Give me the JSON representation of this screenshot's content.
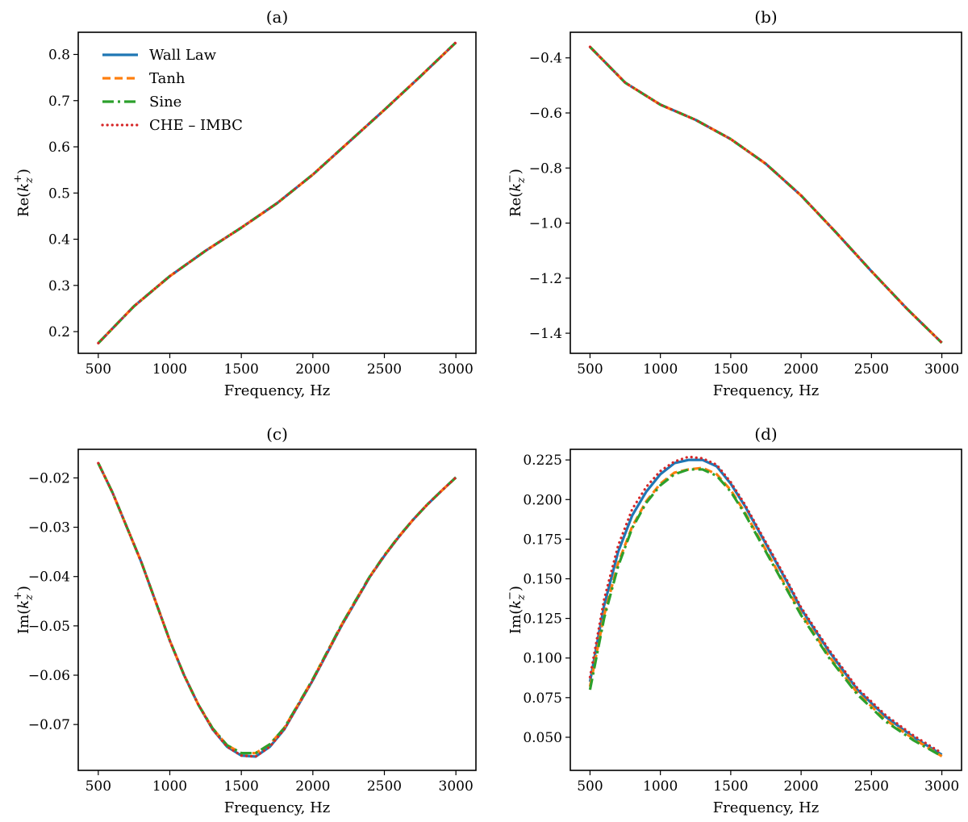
{
  "colors": {
    "wall_law": "#1f77b4",
    "tanh": "#ff7f0e",
    "sine": "#2ca02c",
    "che_imbc": "#d62728"
  },
  "chart_data": [
    {
      "type": "line",
      "panel": "(a)",
      "xlabel": "Frequency, Hz",
      "ylabel_main": "Re(",
      "ylabel_var": "k",
      "ylabel_sub": "z",
      "ylabel_sup": "+",
      "ylabel_close": ")",
      "xlim": [
        360,
        3140
      ],
      "ylim": [
        0.153,
        0.848
      ],
      "xticks": [
        500,
        1000,
        1500,
        2000,
        2500,
        3000
      ],
      "xtick_labels": [
        "500",
        "1000",
        "1500",
        "2000",
        "2500",
        "3000"
      ],
      "yticks": [
        0.2,
        0.3,
        0.4,
        0.5,
        0.6,
        0.7,
        0.8
      ],
      "ytick_labels": [
        "0.2",
        "0.3",
        "0.4",
        "0.5",
        "0.6",
        "0.7",
        "0.8"
      ],
      "legend": {
        "position": "upper-left",
        "entries": [
          "Wall Law",
          "Tanh",
          "Sine",
          "CHE – IMBC"
        ]
      },
      "series": [
        {
          "name": "Wall Law",
          "style": "solid",
          "x": [
            500,
            750,
            1000,
            1250,
            1500,
            1750,
            2000,
            2250,
            2500,
            2750,
            3000
          ],
          "y": [
            0.175,
            0.255,
            0.32,
            0.375,
            0.425,
            0.478,
            0.54,
            0.61,
            0.68,
            0.752,
            0.826
          ]
        },
        {
          "name": "Tanh",
          "style": "dashed",
          "x": [
            500,
            750,
            1000,
            1250,
            1500,
            1750,
            2000,
            2250,
            2500,
            2750,
            3000
          ],
          "y": [
            0.175,
            0.255,
            0.32,
            0.375,
            0.425,
            0.478,
            0.54,
            0.61,
            0.68,
            0.752,
            0.826
          ]
        },
        {
          "name": "Sine",
          "style": "dashdot",
          "x": [
            500,
            750,
            1000,
            1250,
            1500,
            1750,
            2000,
            2250,
            2500,
            2750,
            3000
          ],
          "y": [
            0.175,
            0.255,
            0.32,
            0.375,
            0.425,
            0.478,
            0.54,
            0.61,
            0.68,
            0.752,
            0.826
          ]
        },
        {
          "name": "CHE – IMBC",
          "style": "dotted",
          "x": [
            500,
            750,
            1000,
            1250,
            1500,
            1750,
            2000,
            2250,
            2500,
            2750,
            3000
          ],
          "y": [
            0.175,
            0.255,
            0.32,
            0.375,
            0.425,
            0.478,
            0.54,
            0.61,
            0.68,
            0.752,
            0.826
          ]
        }
      ]
    },
    {
      "type": "line",
      "panel": "(b)",
      "xlabel": "Frequency, Hz",
      "ylabel_main": "Re(",
      "ylabel_var": "k",
      "ylabel_sub": "z",
      "ylabel_sup": "−",
      "ylabel_close": ")",
      "xlim": [
        360,
        3140
      ],
      "ylim": [
        -1.473,
        -0.307
      ],
      "xticks": [
        500,
        1000,
        1500,
        2000,
        2500,
        3000
      ],
      "xtick_labels": [
        "500",
        "1000",
        "1500",
        "2000",
        "2500",
        "3000"
      ],
      "yticks": [
        -1.4,
        -1.2,
        -1.0,
        -0.8,
        -0.6,
        -0.4
      ],
      "ytick_labels": [
        "−1.4",
        "−1.2",
        "−1.0",
        "−0.8",
        "−0.6",
        "−0.4"
      ],
      "series": [
        {
          "name": "Wall Law",
          "style": "solid",
          "x": [
            500,
            750,
            1000,
            1250,
            1500,
            1750,
            2000,
            2250,
            2500,
            2750,
            3000
          ],
          "y": [
            -0.36,
            -0.49,
            -0.57,
            -0.625,
            -0.695,
            -0.785,
            -0.9,
            -1.035,
            -1.175,
            -1.31,
            -1.435
          ]
        },
        {
          "name": "Tanh",
          "style": "dashed",
          "x": [
            500,
            750,
            1000,
            1250,
            1500,
            1750,
            2000,
            2250,
            2500,
            2750,
            3000
          ],
          "y": [
            -0.36,
            -0.49,
            -0.57,
            -0.625,
            -0.695,
            -0.785,
            -0.9,
            -1.035,
            -1.175,
            -1.31,
            -1.435
          ]
        },
        {
          "name": "Sine",
          "style": "dashdot",
          "x": [
            500,
            750,
            1000,
            1250,
            1500,
            1750,
            2000,
            2250,
            2500,
            2750,
            3000
          ],
          "y": [
            -0.36,
            -0.49,
            -0.57,
            -0.625,
            -0.695,
            -0.785,
            -0.9,
            -1.035,
            -1.175,
            -1.31,
            -1.435
          ]
        },
        {
          "name": "CHE – IMBC",
          "style": "dotted",
          "x": [
            500,
            750,
            1000,
            1250,
            1500,
            1750,
            2000,
            2250,
            2500,
            2750,
            3000
          ],
          "y": [
            -0.36,
            -0.49,
            -0.57,
            -0.625,
            -0.695,
            -0.785,
            -0.9,
            -1.035,
            -1.175,
            -1.31,
            -1.435
          ]
        }
      ]
    },
    {
      "type": "line",
      "panel": "(c)",
      "xlabel": "Frequency, Hz",
      "ylabel_main": "Im(",
      "ylabel_var": "k",
      "ylabel_sub": "z",
      "ylabel_sup": "+",
      "ylabel_close": ")",
      "xlim": [
        360,
        3140
      ],
      "ylim": [
        -0.0793,
        -0.0142
      ],
      "xticks": [
        500,
        1000,
        1500,
        2000,
        2500,
        3000
      ],
      "xtick_labels": [
        "500",
        "1000",
        "1500",
        "2000",
        "2500",
        "3000"
      ],
      "yticks": [
        -0.07,
        -0.06,
        -0.05,
        -0.04,
        -0.03,
        -0.02
      ],
      "ytick_labels": [
        "−0.07",
        "−0.06",
        "−0.05",
        "−0.04",
        "−0.03",
        "−0.02"
      ],
      "series": [
        {
          "name": "Wall Law",
          "style": "solid",
          "x": [
            500,
            600,
            700,
            800,
            900,
            1000,
            1100,
            1200,
            1300,
            1400,
            1500,
            1600,
            1700,
            1800,
            1900,
            2000,
            2100,
            2200,
            2300,
            2400,
            2500,
            2600,
            2700,
            2800,
            2900,
            3000
          ],
          "y": [
            -0.017,
            -0.023,
            -0.03,
            -0.037,
            -0.045,
            -0.053,
            -0.06,
            -0.066,
            -0.071,
            -0.0745,
            -0.0763,
            -0.0765,
            -0.0745,
            -0.071,
            -0.066,
            -0.061,
            -0.0555,
            -0.05,
            -0.045,
            -0.04,
            -0.0358,
            -0.032,
            -0.0285,
            -0.0254,
            -0.0226,
            -0.0199
          ]
        },
        {
          "name": "Tanh",
          "style": "dashed",
          "x": [
            500,
            600,
            700,
            800,
            900,
            1000,
            1100,
            1200,
            1300,
            1400,
            1500,
            1600,
            1700,
            1800,
            1900,
            2000,
            2100,
            2200,
            2300,
            2400,
            2500,
            2600,
            2700,
            2800,
            2900,
            3000
          ],
          "y": [
            -0.017,
            -0.023,
            -0.03,
            -0.037,
            -0.045,
            -0.053,
            -0.06,
            -0.066,
            -0.0708,
            -0.0742,
            -0.0758,
            -0.0758,
            -0.074,
            -0.0707,
            -0.0658,
            -0.0608,
            -0.0553,
            -0.0498,
            -0.0448,
            -0.0399,
            -0.0357,
            -0.0319,
            -0.0285,
            -0.0254,
            -0.0226,
            -0.0199
          ]
        },
        {
          "name": "Sine",
          "style": "dashdot",
          "x": [
            500,
            600,
            700,
            800,
            900,
            1000,
            1100,
            1200,
            1300,
            1400,
            1500,
            1600,
            1700,
            1800,
            1900,
            2000,
            2100,
            2200,
            2300,
            2400,
            2500,
            2600,
            2700,
            2800,
            2900,
            3000
          ],
          "y": [
            -0.017,
            -0.023,
            -0.03,
            -0.037,
            -0.045,
            -0.053,
            -0.06,
            -0.066,
            -0.0708,
            -0.0742,
            -0.0758,
            -0.0758,
            -0.074,
            -0.0707,
            -0.0658,
            -0.0608,
            -0.0553,
            -0.0498,
            -0.0448,
            -0.0399,
            -0.0357,
            -0.0319,
            -0.0285,
            -0.0254,
            -0.0226,
            -0.0199
          ]
        },
        {
          "name": "CHE – IMBC",
          "style": "dotted",
          "x": [
            500,
            600,
            700,
            800,
            900,
            1000,
            1100,
            1200,
            1300,
            1400,
            1500,
            1600,
            1700,
            1800,
            1900,
            2000,
            2100,
            2200,
            2300,
            2400,
            2500,
            2600,
            2700,
            2800,
            2900,
            3000
          ],
          "y": [
            -0.017,
            -0.023,
            -0.03,
            -0.037,
            -0.045,
            -0.053,
            -0.06,
            -0.066,
            -0.071,
            -0.0745,
            -0.0763,
            -0.0765,
            -0.0745,
            -0.071,
            -0.066,
            -0.061,
            -0.0555,
            -0.05,
            -0.045,
            -0.04,
            -0.0358,
            -0.032,
            -0.0285,
            -0.0254,
            -0.0226,
            -0.0199
          ]
        }
      ]
    },
    {
      "type": "line",
      "panel": "(d)",
      "xlabel": "Frequency, Hz",
      "ylabel_main": "Im(",
      "ylabel_var": "k",
      "ylabel_sub": "z",
      "ylabel_sup": "−",
      "ylabel_close": ")",
      "xlim": [
        360,
        3140
      ],
      "ylim": [
        0.0291,
        0.2317
      ],
      "xticks": [
        500,
        1000,
        1500,
        2000,
        2500,
        3000
      ],
      "xtick_labels": [
        "500",
        "1000",
        "1500",
        "2000",
        "2500",
        "3000"
      ],
      "yticks": [
        0.05,
        0.075,
        0.1,
        0.125,
        0.15,
        0.175,
        0.2,
        0.225
      ],
      "ytick_labels": [
        "0.050",
        "0.075",
        "0.100",
        "0.125",
        "0.150",
        "0.175",
        "0.200",
        "0.225"
      ],
      "series": [
        {
          "name": "Wall Law",
          "style": "solid",
          "x": [
            500,
            600,
            700,
            800,
            900,
            1000,
            1100,
            1200,
            1300,
            1400,
            1500,
            1600,
            1700,
            1800,
            1900,
            2000,
            2200,
            2400,
            2600,
            2800,
            3000
          ],
          "y": [
            0.085,
            0.133,
            0.167,
            0.19,
            0.205,
            0.216,
            0.223,
            0.225,
            0.225,
            0.221,
            0.21,
            0.196,
            0.18,
            0.164,
            0.148,
            0.131,
            0.104,
            0.08,
            0.063,
            0.05,
            0.039
          ]
        },
        {
          "name": "Tanh",
          "style": "dashed",
          "x": [
            500,
            600,
            700,
            800,
            900,
            1000,
            1100,
            1200,
            1300,
            1400,
            1500,
            1600,
            1700,
            1800,
            1900,
            2000,
            2200,
            2400,
            2600,
            2800,
            3000
          ],
          "y": [
            0.082,
            0.127,
            0.16,
            0.183,
            0.199,
            0.21,
            0.217,
            0.219,
            0.22,
            0.216,
            0.206,
            0.192,
            0.176,
            0.16,
            0.144,
            0.128,
            0.101,
            0.078,
            0.061,
            0.049,
            0.038
          ]
        },
        {
          "name": "Sine",
          "style": "dashdot",
          "x": [
            500,
            600,
            700,
            800,
            900,
            1000,
            1100,
            1200,
            1300,
            1400,
            1500,
            1600,
            1700,
            1800,
            1900,
            2000,
            2200,
            2400,
            2600,
            2800,
            3000
          ],
          "y": [
            0.08,
            0.125,
            0.158,
            0.182,
            0.198,
            0.209,
            0.216,
            0.219,
            0.219,
            0.215,
            0.205,
            0.191,
            0.175,
            0.159,
            0.143,
            0.127,
            0.1,
            0.077,
            0.06,
            0.048,
            0.038
          ]
        },
        {
          "name": "CHE – IMBC",
          "style": "dotted",
          "x": [
            500,
            600,
            700,
            800,
            900,
            1000,
            1100,
            1200,
            1300,
            1400,
            1500,
            1600,
            1700,
            1800,
            1900,
            2000,
            2200,
            2400,
            2600,
            2800,
            3000
          ],
          "y": [
            0.088,
            0.137,
            0.171,
            0.194,
            0.208,
            0.218,
            0.224,
            0.227,
            0.226,
            0.222,
            0.211,
            0.197,
            0.181,
            0.165,
            0.149,
            0.132,
            0.105,
            0.081,
            0.064,
            0.051,
            0.04
          ]
        }
      ]
    }
  ]
}
